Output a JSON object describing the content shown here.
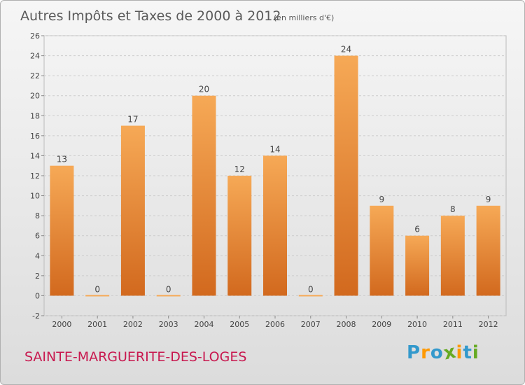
{
  "page": {
    "commune": "SAINTE-MARGUERITE-DES-LOGES"
  },
  "logo": {
    "text": "Proxiti",
    "letters": [
      "P",
      "r",
      "o",
      "x",
      "i",
      "t",
      "i"
    ],
    "colors": [
      "#3399cc",
      "#ff9900",
      "#3399cc",
      "#66aa22",
      "#ff9900",
      "#3399cc",
      "#66aa22"
    ]
  },
  "colors": {
    "bar_top": "#f6a956",
    "bar_bottom": "#d2691e",
    "commune_text": "#c8184f",
    "title_text": "#5a5a5a",
    "grid": "#cccccc"
  },
  "chart_data": {
    "type": "bar",
    "title": "Autres Impôts et Taxes de 2000 à 2012",
    "subtitle": "(en milliers d'€)",
    "xlabel": "",
    "ylabel": "",
    "categories": [
      "2000",
      "2001",
      "2002",
      "2003",
      "2004",
      "2005",
      "2006",
      "2007",
      "2008",
      "2009",
      "2010",
      "2011",
      "2012"
    ],
    "values": [
      13,
      0,
      17,
      0,
      20,
      12,
      14,
      0,
      24,
      9,
      6,
      8,
      9
    ],
    "value_labels": [
      "13",
      "0",
      "17",
      "0",
      "20",
      "12",
      "14",
      "0",
      "24",
      "9",
      "6",
      "8",
      "9"
    ],
    "ylim": [
      -2,
      26
    ],
    "yticks": [
      -2,
      0,
      2,
      4,
      6,
      8,
      10,
      12,
      14,
      16,
      18,
      20,
      22,
      24,
      26
    ],
    "ytick_labels": [
      "-2",
      "0",
      "2",
      "4",
      "6",
      "8",
      "10",
      "12",
      "14",
      "16",
      "18",
      "20",
      "22",
      "24",
      "26"
    ],
    "grid": true,
    "legend": "none"
  }
}
